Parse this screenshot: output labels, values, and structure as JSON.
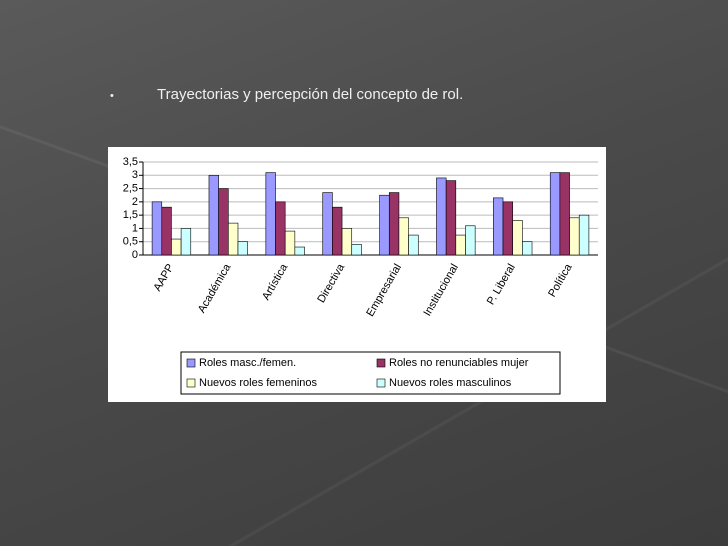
{
  "slide": {
    "bullet": "•",
    "text": "Trayectorias y percepción del concepto de rol."
  },
  "chart_data": {
    "type": "bar",
    "categories": [
      "AAPP",
      "Académica",
      "Artística",
      "Directiva",
      "Empresarial",
      "Institucional",
      "P. Liberal",
      "Política"
    ],
    "series": [
      {
        "name": "Roles masc./femen.",
        "color": "#9999ff",
        "values": [
          2.0,
          3.0,
          3.1,
          2.35,
          2.25,
          2.9,
          2.15,
          3.1
        ]
      },
      {
        "name": "Roles no renunciables mujer",
        "color": "#993366",
        "values": [
          1.8,
          2.5,
          2.0,
          1.8,
          2.35,
          2.8,
          2.0,
          3.1
        ]
      },
      {
        "name": "Nuevos roles femeninos",
        "color": "#ffffcc",
        "values": [
          0.6,
          1.2,
          0.9,
          1.0,
          1.4,
          0.75,
          1.3,
          1.4
        ]
      },
      {
        "name": "Nuevos roles masculinos",
        "color": "#ccffff",
        "values": [
          1.0,
          0.5,
          0.3,
          0.4,
          0.75,
          1.1,
          0.5,
          1.5
        ]
      }
    ],
    "ylim": [
      0,
      3.5
    ],
    "yticks": [
      0,
      {
        "value": 0.5,
        "label": "0,5"
      },
      1,
      {
        "value": 1.5,
        "label": "1,5"
      },
      2,
      {
        "value": 2.5,
        "label": "2,5"
      },
      3,
      {
        "value": 3.5,
        "label": "3,5"
      }
    ],
    "grid": true,
    "legend": "bottom"
  }
}
